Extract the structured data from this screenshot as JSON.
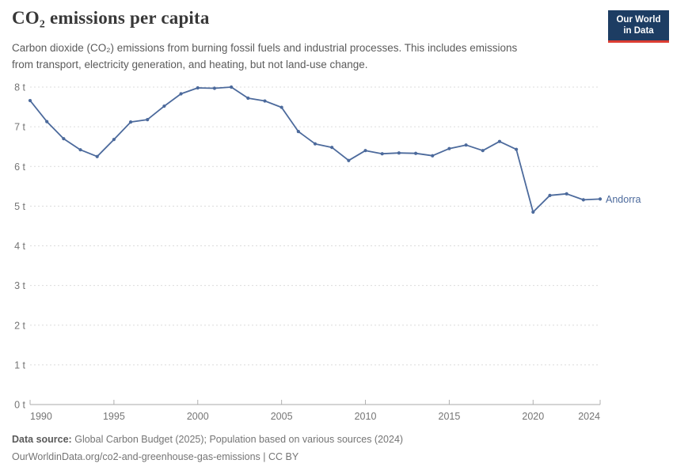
{
  "header": {
    "title": "CO₂ emissions per capita",
    "subtitle_line1": "Carbon dioxide (CO₂) emissions from burning fossil fuels and industrial processes. This includes emissions",
    "subtitle_line2": "from transport, electricity generation, and heating, but not land-use change.",
    "logo": {
      "line1": "Our World",
      "line2": "in Data"
    }
  },
  "chart_data": {
    "type": "line",
    "title": "CO₂ emissions per capita",
    "unit": "t",
    "x": [
      1990,
      1991,
      1992,
      1993,
      1994,
      1995,
      1996,
      1997,
      1998,
      1999,
      2000,
      2001,
      2002,
      2003,
      2004,
      2005,
      2006,
      2007,
      2008,
      2009,
      2010,
      2011,
      2012,
      2013,
      2014,
      2015,
      2016,
      2017,
      2018,
      2019,
      2020,
      2021,
      2022,
      2023,
      2024
    ],
    "series": [
      {
        "name": "Andorra",
        "color": "#4c6a9c",
        "values": [
          7.66,
          7.13,
          6.7,
          6.42,
          6.25,
          6.68,
          7.12,
          7.18,
          7.52,
          7.83,
          7.98,
          7.97,
          8.0,
          7.72,
          7.65,
          7.49,
          6.88,
          6.57,
          6.48,
          6.15,
          6.4,
          6.32,
          6.34,
          6.33,
          6.27,
          6.45,
          6.54,
          6.4,
          6.63,
          6.43,
          4.85,
          5.27,
          5.31,
          5.16,
          5.18
        ]
      }
    ],
    "ylim": [
      0,
      8
    ],
    "yticks": [
      0,
      1,
      2,
      3,
      4,
      5,
      6,
      7,
      8
    ],
    "ytick_suffix": " t",
    "xticks": [
      1990,
      1995,
      2000,
      2005,
      2010,
      2015,
      2020,
      2024
    ],
    "grid": true,
    "legend": "end-of-line-label"
  },
  "footer": {
    "source_label": "Data source:",
    "source_text": "Global Carbon Budget (2025); Population based on various sources (2024)",
    "citation": "OurWorldinData.org/co2-and-greenhouse-gas-emissions | CC BY"
  },
  "colors": {
    "line": "#4c6a9c",
    "gridline": "#dcdcdc",
    "axis_line": "#a8a8a8",
    "tick": "#b0b0b0",
    "axis_text": "#757575",
    "logo_bg": "#1d3d63",
    "logo_red": "#dc3d33"
  }
}
